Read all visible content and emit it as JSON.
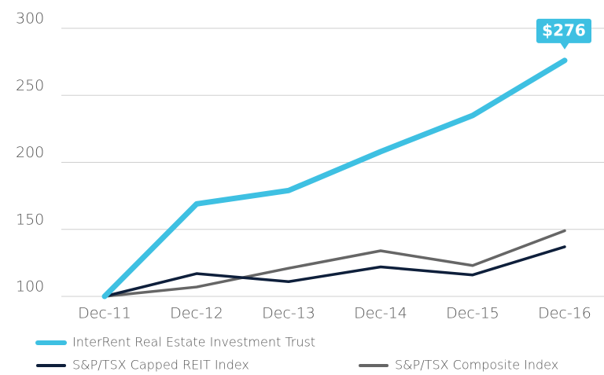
{
  "chart_data": {
    "type": "line",
    "categories": [
      "Dec-11",
      "Dec-12",
      "Dec-13",
      "Dec-14",
      "Dec-15",
      "Dec-16"
    ],
    "series": [
      {
        "name": "InterRent Real Estate Investment Trust",
        "color": "#3ec0e2",
        "values": [
          100,
          169,
          179,
          208,
          235,
          276
        ],
        "value_labels": [
          null,
          null,
          null,
          null,
          null,
          "$276"
        ]
      },
      {
        "name": "S&P/TSX Capped REIT Index",
        "color": "#0e1f3b",
        "values": [
          100,
          117,
          111,
          122,
          116,
          137
        ]
      },
      {
        "name": "S&P/TSX Composite Index",
        "color": "#666666",
        "values": [
          100,
          107,
          121,
          134,
          123,
          149
        ]
      }
    ],
    "ylim": [
      100,
      300
    ],
    "yticks": [
      100,
      150,
      200,
      250,
      300
    ],
    "grid": true
  }
}
